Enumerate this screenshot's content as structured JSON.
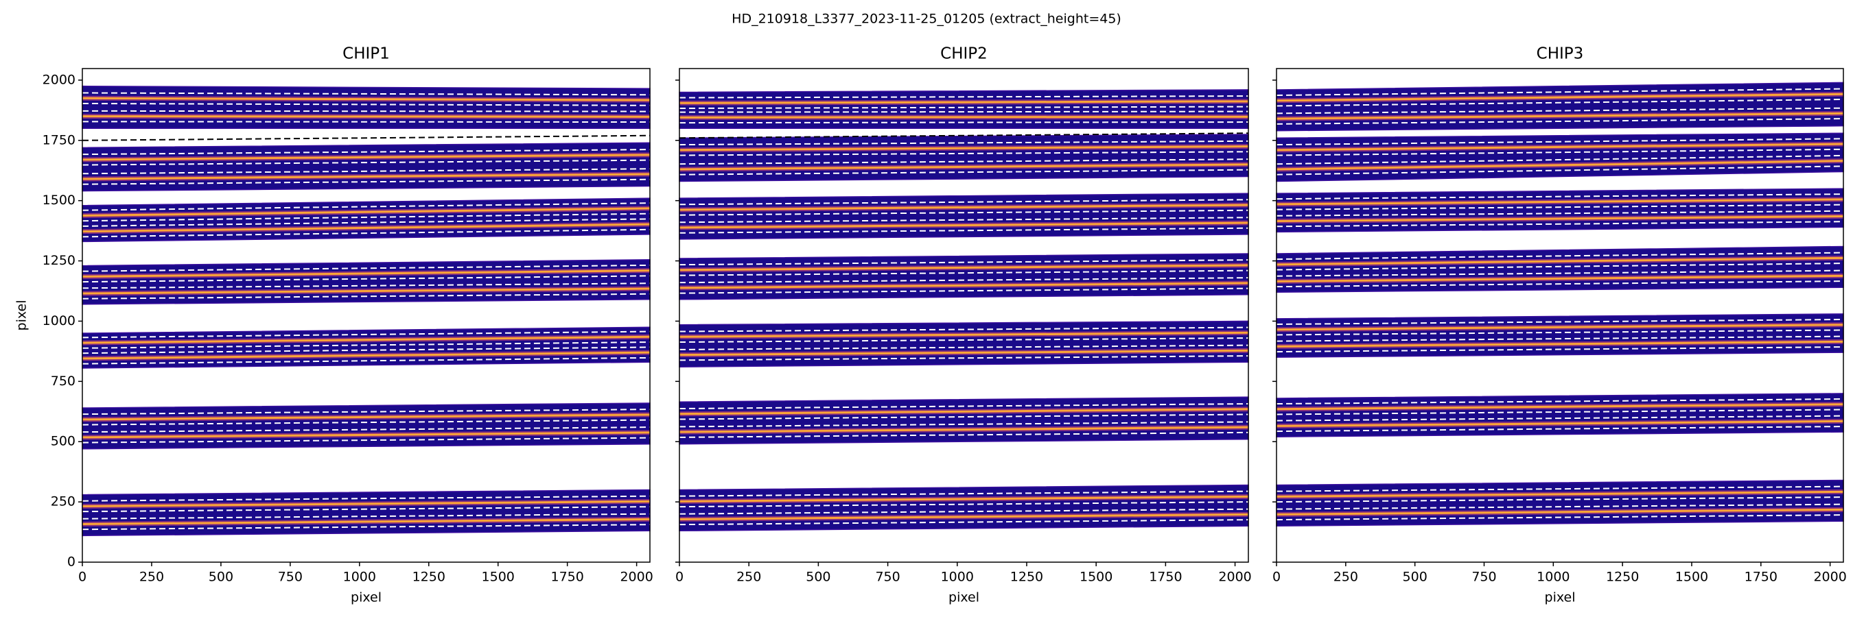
{
  "title": "HD_210918_L3377_2023-11-25_01205  (extract_height=45)",
  "chart_data": [
    {
      "type": "orders",
      "title": "CHIP1",
      "xlabel": "pixel",
      "ylabel": "pixel",
      "xlim": [
        0,
        2048
      ],
      "ylim": [
        0,
        2048
      ],
      "xticks": [
        0,
        250,
        500,
        750,
        1000,
        1250,
        1500,
        1750,
        2000
      ],
      "yticks": [
        0,
        250,
        500,
        750,
        1000,
        1250,
        1500,
        1750,
        2000
      ],
      "band_color": "#1a0a8a",
      "trace_color": "#fca636",
      "limit_color": "#ffffff",
      "reference_color": "#000000",
      "reference_line": [
        1750,
        1770
      ],
      "orders": [
        {
          "lower": [
            110,
            130
          ],
          "upper": [
            280,
            300
          ],
          "traces": [
            [
              158,
              178
            ],
            [
              232,
              252
            ]
          ],
          "limits": [
            [
              136,
              156
            ],
            [
              180,
              200
            ],
            [
              210,
              230
            ],
            [
              254,
              274
            ]
          ]
        },
        {
          "lower": [
            470,
            490
          ],
          "upper": [
            640,
            660
          ],
          "traces": [
            [
              518,
              538
            ],
            [
              592,
              612
            ]
          ],
          "limits": [
            [
              496,
              516
            ],
            [
              540,
              560
            ],
            [
              570,
              590
            ],
            [
              614,
              634
            ]
          ]
        },
        {
          "lower": [
            805,
            830
          ],
          "upper": [
            950,
            975
          ],
          "traces": [
            [
              845,
              870
            ],
            [
              910,
              935
            ]
          ],
          "limits": [
            [
              823,
              848
            ],
            [
              867,
              892
            ],
            [
              888,
              913
            ],
            [
              932,
              957
            ]
          ]
        },
        {
          "lower": [
            1070,
            1090
          ],
          "upper": [
            1230,
            1255
          ],
          "traces": [
            [
              1115,
              1135
            ],
            [
              1185,
              1210
            ]
          ],
          "limits": [
            [
              1093,
              1113
            ],
            [
              1137,
              1157
            ],
            [
              1163,
              1188
            ],
            [
              1207,
              1232
            ]
          ]
        },
        {
          "lower": [
            1330,
            1360
          ],
          "upper": [
            1480,
            1510
          ],
          "traces": [
            [
              1372,
              1402
            ],
            [
              1438,
              1468
            ]
          ],
          "limits": [
            [
              1350,
              1380
            ],
            [
              1394,
              1424
            ],
            [
              1416,
              1446
            ],
            [
              1460,
              1490
            ]
          ]
        },
        {
          "lower": [
            1540,
            1560
          ],
          "upper": [
            1720,
            1740
          ],
          "traces": [
            [
              1590,
              1610
            ],
            [
              1670,
              1690
            ]
          ],
          "limits": [
            [
              1568,
              1588
            ],
            [
              1612,
              1632
            ],
            [
              1648,
              1668
            ],
            [
              1692,
              1712
            ]
          ]
        },
        {
          "lower": [
            1800,
            1800
          ],
          "upper": [
            1975,
            1965
          ],
          "traces": [
            [
              1850,
              1848
            ],
            [
              1925,
              1917
            ]
          ],
          "limits": [
            [
              1828,
              1826
            ],
            [
              1872,
              1870
            ],
            [
              1903,
              1895
            ],
            [
              1947,
              1939
            ]
          ]
        }
      ]
    },
    {
      "type": "orders",
      "title": "CHIP2",
      "xlabel": "pixel",
      "xlim": [
        0,
        2048
      ],
      "ylim": [
        0,
        2048
      ],
      "xticks": [
        0,
        250,
        500,
        750,
        1000,
        1250,
        1500,
        1750,
        2000
      ],
      "band_color": "#1a0a8a",
      "trace_color": "#fca636",
      "limit_color": "#ffffff",
      "reference_color": "#000000",
      "reference_line": [
        1760,
        1780
      ],
      "orders": [
        {
          "lower": [
            130,
            150
          ],
          "upper": [
            300,
            320
          ],
          "traces": [
            [
              178,
              198
            ],
            [
              252,
              272
            ]
          ],
          "limits": [
            [
              156,
              176
            ],
            [
              200,
              220
            ],
            [
              230,
              250
            ],
            [
              274,
              294
            ]
          ]
        },
        {
          "lower": [
            490,
            510
          ],
          "upper": [
            665,
            685
          ],
          "traces": [
            [
              540,
              560
            ],
            [
              615,
              635
            ]
          ],
          "limits": [
            [
              518,
              538
            ],
            [
              562,
              582
            ],
            [
              593,
              613
            ],
            [
              637,
              657
            ]
          ]
        },
        {
          "lower": [
            810,
            830
          ],
          "upper": [
            985,
            1000
          ],
          "traces": [
            [
              860,
              878
            ],
            [
              935,
              952
            ]
          ],
          "limits": [
            [
              838,
              856
            ],
            [
              882,
              900
            ],
            [
              913,
              930
            ],
            [
              957,
              974
            ]
          ]
        },
        {
          "lower": [
            1090,
            1110
          ],
          "upper": [
            1260,
            1280
          ],
          "traces": [
            [
              1138,
              1158
            ],
            [
              1212,
              1232
            ]
          ],
          "limits": [
            [
              1116,
              1136
            ],
            [
              1160,
              1180
            ],
            [
              1190,
              1210
            ],
            [
              1234,
              1254
            ]
          ]
        },
        {
          "lower": [
            1340,
            1360
          ],
          "upper": [
            1510,
            1530
          ],
          "traces": [
            [
              1388,
              1408
            ],
            [
              1462,
              1482
            ]
          ],
          "limits": [
            [
              1366,
              1386
            ],
            [
              1410,
              1430
            ],
            [
              1440,
              1460
            ],
            [
              1484,
              1504
            ]
          ]
        },
        {
          "lower": [
            1580,
            1600
          ],
          "upper": [
            1760,
            1775
          ],
          "traces": [
            [
              1630,
              1650
            ],
            [
              1710,
              1725
            ]
          ],
          "limits": [
            [
              1608,
              1628
            ],
            [
              1652,
              1672
            ],
            [
              1688,
              1703
            ],
            [
              1732,
              1747
            ]
          ]
        },
        {
          "lower": [
            1800,
            1800
          ],
          "upper": [
            1950,
            1960
          ],
          "traces": [
            [
              1845,
              1848
            ],
            [
              1905,
              1912
            ]
          ],
          "limits": [
            [
              1823,
              1826
            ],
            [
              1867,
              1870
            ],
            [
              1883,
              1890
            ],
            [
              1927,
              1934
            ]
          ]
        }
      ]
    },
    {
      "type": "orders",
      "title": "CHIP3",
      "xlabel": "pixel",
      "xlim": [
        0,
        2048
      ],
      "ylim": [
        0,
        2048
      ],
      "xticks": [
        0,
        250,
        500,
        750,
        1000,
        1250,
        1500,
        1750,
        2000
      ],
      "band_color": "#1a0a8a",
      "trace_color": "#fca636",
      "limit_color": "#ffffff",
      "reference_color": "#000000",
      "orders": [
        {
          "lower": [
            150,
            170
          ],
          "upper": [
            320,
            340
          ],
          "traces": [
            [
              198,
              218
            ],
            [
              272,
              292
            ]
          ],
          "limits": [
            [
              176,
              196
            ],
            [
              220,
              240
            ],
            [
              250,
              270
            ],
            [
              294,
              314
            ]
          ]
        },
        {
          "lower": [
            520,
            540
          ],
          "upper": [
            680,
            700
          ],
          "traces": [
            [
              565,
              585
            ],
            [
              635,
              655
            ]
          ],
          "limits": [
            [
              543,
              563
            ],
            [
              587,
              607
            ],
            [
              613,
              633
            ],
            [
              657,
              677
            ]
          ]
        },
        {
          "lower": [
            850,
            870
          ],
          "upper": [
            1010,
            1030
          ],
          "traces": [
            [
              895,
              915
            ],
            [
              965,
              985
            ]
          ],
          "limits": [
            [
              873,
              893
            ],
            [
              917,
              937
            ],
            [
              943,
              963
            ],
            [
              987,
              1007
            ]
          ]
        },
        {
          "lower": [
            1120,
            1140
          ],
          "upper": [
            1280,
            1310
          ],
          "traces": [
            [
              1165,
              1188
            ],
            [
              1235,
              1262
            ]
          ],
          "limits": [
            [
              1143,
              1166
            ],
            [
              1187,
              1210
            ],
            [
              1213,
              1240
            ],
            [
              1257,
              1284
            ]
          ]
        },
        {
          "lower": [
            1370,
            1390
          ],
          "upper": [
            1530,
            1550
          ],
          "traces": [
            [
              1415,
              1435
            ],
            [
              1485,
              1505
            ]
          ],
          "limits": [
            [
              1393,
              1413
            ],
            [
              1437,
              1457
            ],
            [
              1463,
              1483
            ],
            [
              1507,
              1527
            ]
          ]
        },
        {
          "lower": [
            1580,
            1620
          ],
          "upper": [
            1760,
            1780
          ],
          "traces": [
            [
              1630,
              1665
            ],
            [
              1710,
              1735
            ]
          ],
          "limits": [
            [
              1608,
              1643
            ],
            [
              1652,
              1687
            ],
            [
              1688,
              1713
            ],
            [
              1732,
              1757
            ]
          ]
        },
        {
          "lower": [
            1790,
            1810
          ],
          "upper": [
            1960,
            1990
          ],
          "traces": [
            [
              1840,
              1862
            ],
            [
              1915,
              1942
            ]
          ],
          "limits": [
            [
              1818,
              1840
            ],
            [
              1862,
              1884
            ],
            [
              1893,
              1920
            ],
            [
              1937,
              1964
            ]
          ]
        }
      ]
    }
  ]
}
